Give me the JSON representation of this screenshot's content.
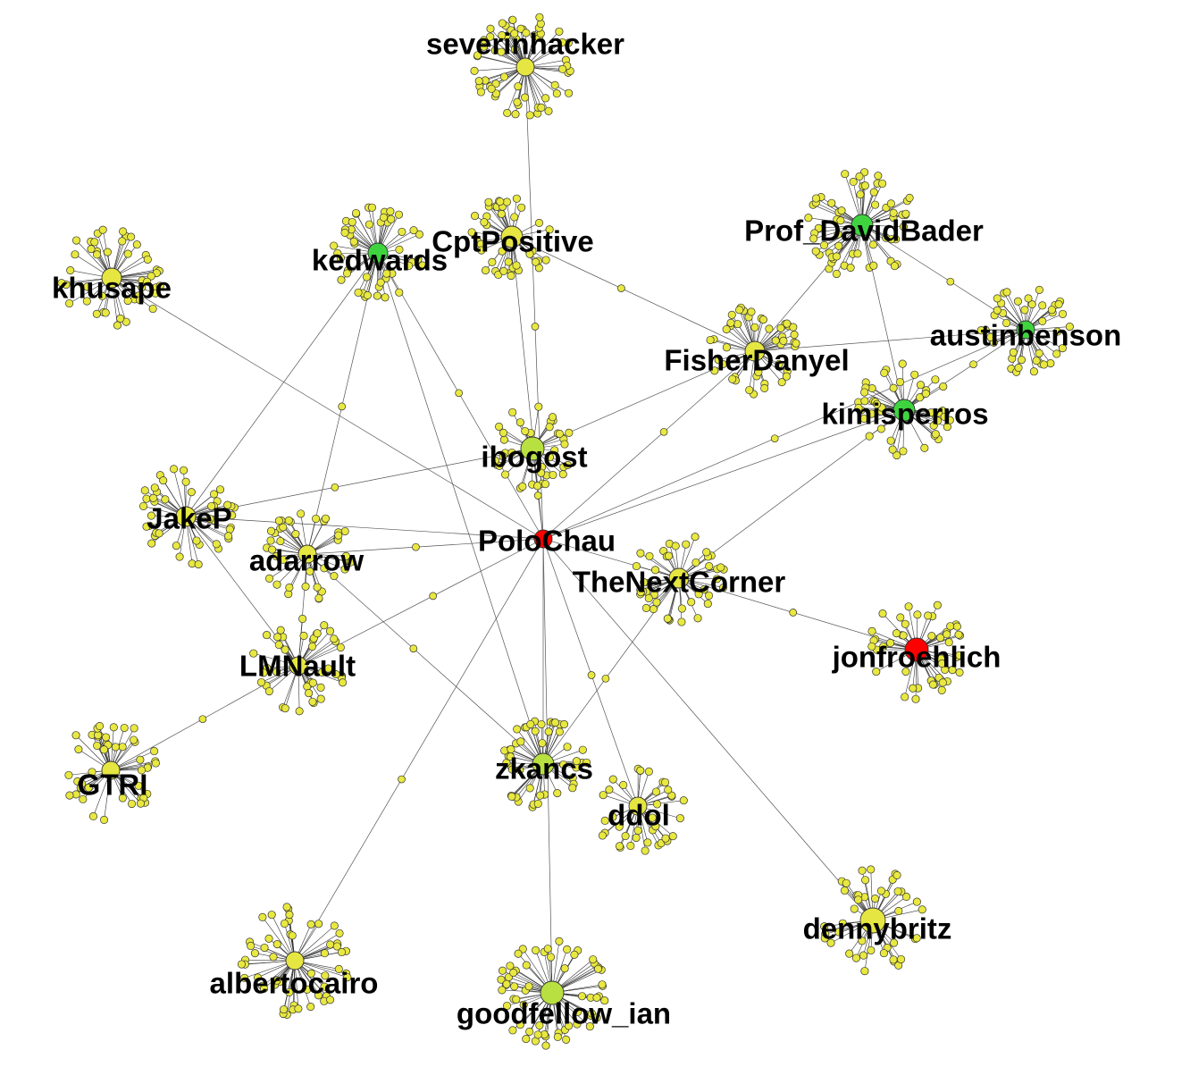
{
  "colors": {
    "background": "#ffffff",
    "edge": "#555555",
    "leaf": "#e8e840",
    "leaf_stroke": "#333333",
    "hub_yellow": "#e6e642",
    "hub_lime": "#b8e040",
    "hub_green": "#3fd43f",
    "hub_red": "#ff0000"
  },
  "hubs": [
    {
      "id": "severinhacker",
      "label": "severinhacker",
      "color": "yellow",
      "leaves": 62
    },
    {
      "id": "CptPositive",
      "label": "CptPositive",
      "color": "yellow",
      "leaves": 40
    },
    {
      "id": "kedwards",
      "label": "kedwards",
      "color": "green",
      "leaves": 48
    },
    {
      "id": "khusape",
      "label": "khusape",
      "color": "yellow",
      "leaves": 46
    },
    {
      "id": "Prof_DavidBader",
      "label": "Prof_DavidBader",
      "color": "green",
      "leaves": 60
    },
    {
      "id": "austinbenson",
      "label": "austinbenson",
      "color": "green",
      "leaves": 42
    },
    {
      "id": "FisherDanyel",
      "label": "FisherDanyel",
      "color": "yellow",
      "leaves": 46
    },
    {
      "id": "kimisperros",
      "label": "kimisperros",
      "color": "green",
      "leaves": 46
    },
    {
      "id": "ibogost",
      "label": "ibogost",
      "color": "lime",
      "leaves": 40
    },
    {
      "id": "JakeP",
      "label": "JakeP",
      "color": "yellow",
      "leaves": 44
    },
    {
      "id": "adarrow",
      "label": "adarrow",
      "color": "yellow",
      "leaves": 40
    },
    {
      "id": "PoloChau",
      "label": "PoloChau",
      "color": "red",
      "leaves": 0
    },
    {
      "id": "TheNextCorner",
      "label": "TheNextCorner",
      "color": "yellow",
      "leaves": 44
    },
    {
      "id": "jonfroehlich",
      "label": "jonfroehlich",
      "color": "red",
      "leaves": 48
    },
    {
      "id": "LMNault",
      "label": "LMNault",
      "color": "yellow",
      "leaves": 44
    },
    {
      "id": "GTRI",
      "label": "GTRI",
      "color": "yellow",
      "leaves": 46
    },
    {
      "id": "zkancs",
      "label": "zkancs",
      "color": "lime",
      "leaves": 48
    },
    {
      "id": "ddol",
      "label": "ddol",
      "color": "yellow",
      "leaves": 38
    },
    {
      "id": "dennybritz",
      "label": "dennybritz",
      "color": "yellow",
      "leaves": 44
    },
    {
      "id": "albertocairo",
      "label": "albertocairo",
      "color": "yellow",
      "leaves": 58
    },
    {
      "id": "goodfellow_ian",
      "label": "goodfellow_ian",
      "color": "lime",
      "leaves": 62
    }
  ],
  "edges": [
    [
      "PoloChau",
      "severinhacker"
    ],
    [
      "PoloChau",
      "CptPositive"
    ],
    [
      "PoloChau",
      "kedwards"
    ],
    [
      "PoloChau",
      "khusape"
    ],
    [
      "PoloChau",
      "FisherDanyel"
    ],
    [
      "PoloChau",
      "kimisperros"
    ],
    [
      "PoloChau",
      "ibogost"
    ],
    [
      "PoloChau",
      "JakeP"
    ],
    [
      "PoloChau",
      "adarrow"
    ],
    [
      "PoloChau",
      "TheNextCorner"
    ],
    [
      "PoloChau",
      "LMNault"
    ],
    [
      "PoloChau",
      "zkancs"
    ],
    [
      "PoloChau",
      "ddol"
    ],
    [
      "PoloChau",
      "dennybritz"
    ],
    [
      "PoloChau",
      "albertocairo"
    ],
    [
      "PoloChau",
      "goodfellow_ian"
    ],
    [
      "PoloChau",
      "austinbenson"
    ],
    [
      "Prof_DavidBader",
      "FisherDanyel"
    ],
    [
      "Prof_DavidBader",
      "austinbenson"
    ],
    [
      "Prof_DavidBader",
      "kimisperros"
    ],
    [
      "CptPositive",
      "FisherDanyel"
    ],
    [
      "kedwards",
      "JakeP"
    ],
    [
      "kedwards",
      "adarrow"
    ],
    [
      "kedwards",
      "zkancs"
    ],
    [
      "ibogost",
      "JakeP"
    ],
    [
      "ibogost",
      "FisherDanyel"
    ],
    [
      "TheNextCorner",
      "jonfroehlich"
    ],
    [
      "TheNextCorner",
      "kimisperros"
    ],
    [
      "TheNextCorner",
      "zkancs"
    ],
    [
      "JakeP",
      "LMNault"
    ],
    [
      "adarrow",
      "zkancs"
    ],
    [
      "adarrow",
      "LMNault"
    ],
    [
      "LMNault",
      "GTRI"
    ],
    [
      "FisherDanyel",
      "austinbenson"
    ],
    [
      "kimisperros",
      "austinbenson"
    ]
  ]
}
